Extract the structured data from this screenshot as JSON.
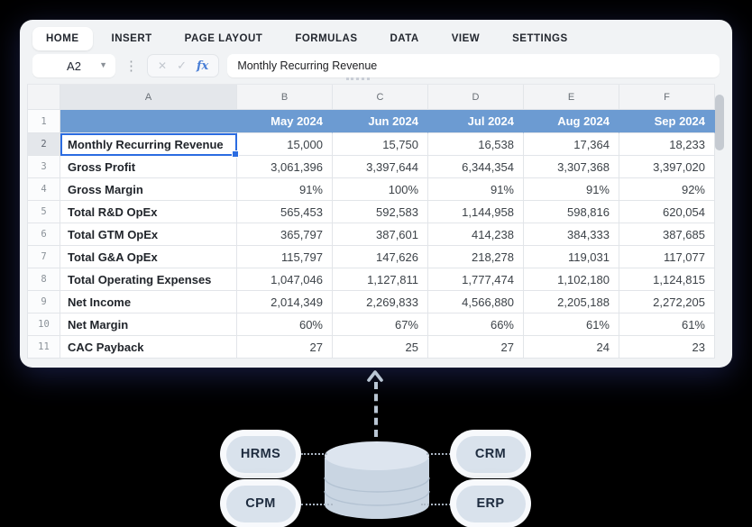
{
  "window": {
    "tabs": [
      "HOME",
      "INSERT",
      "PAGE LAYOUT",
      "FORMULAS",
      "DATA",
      "VIEW",
      "SETTINGS"
    ],
    "active_tab": "HOME"
  },
  "formula_bar": {
    "cell_reference": "A2",
    "formula_value": "Monthly Recurring Revenue",
    "icons": {
      "cancel": "✕",
      "confirm": "✓",
      "function": "fx"
    }
  },
  "spreadsheet": {
    "column_letters": [
      "A",
      "B",
      "C",
      "D",
      "E",
      "F"
    ],
    "selected_cell": "A2",
    "selected_column": "A",
    "header_row": {
      "number": "1",
      "months": [
        "May 2024",
        "Jun 2024",
        "Jul 2024",
        "Aug 2024",
        "Sep 2024"
      ]
    },
    "rows": [
      {
        "number": "2",
        "selected": true,
        "label": "Monthly Recurring Revenue",
        "values": [
          "15,000",
          "15,750",
          "16,538",
          "17,364",
          "18,233"
        ]
      },
      {
        "number": "3",
        "label": "Gross Profit",
        "values": [
          "3,061,396",
          "3,397,644",
          "6,344,354",
          "3,307,368",
          "3,397,020"
        ]
      },
      {
        "number": "4",
        "label": "Gross Margin",
        "values": [
          "91%",
          "100%",
          "91%",
          "91%",
          "92%"
        ]
      },
      {
        "number": "5",
        "label": "Total R&D OpEx",
        "values": [
          "565,453",
          "592,583",
          "1,144,958",
          "598,816",
          "620,054"
        ]
      },
      {
        "number": "6",
        "label": "Total GTM OpEx",
        "values": [
          "365,797",
          "387,601",
          "414,238",
          "384,333",
          "387,685"
        ]
      },
      {
        "number": "7",
        "label": "Total G&A OpEx",
        "values": [
          "115,797",
          "147,626",
          "218,278",
          "119,031",
          "117,077"
        ]
      },
      {
        "number": "8",
        "label": "Total Operating Expenses",
        "values": [
          "1,047,046",
          "1,127,811",
          "1,777,474",
          "1,102,180",
          "1,124,815"
        ]
      },
      {
        "number": "9",
        "label": "Net Income",
        "values": [
          "2,014,349",
          "2,269,833",
          "4,566,880",
          "2,205,188",
          "2,272,205"
        ]
      },
      {
        "number": "10",
        "label": "Net Margin",
        "values": [
          "60%",
          "67%",
          "66%",
          "61%",
          "61%"
        ]
      },
      {
        "number": "11",
        "label": "CAC Payback",
        "values": [
          "27",
          "25",
          "27",
          "24",
          "23"
        ]
      }
    ]
  },
  "diagram": {
    "systems": [
      "HRMS",
      "CRM",
      "CPM",
      "ERP"
    ]
  },
  "colors": {
    "header_row_blue": "#6c9bd2",
    "selection_blue": "#2b6ce1",
    "window_chrome": "#f1f3f5",
    "pill_fill": "#d9e2ec",
    "diagram_accent": "#b9c6d4"
  }
}
